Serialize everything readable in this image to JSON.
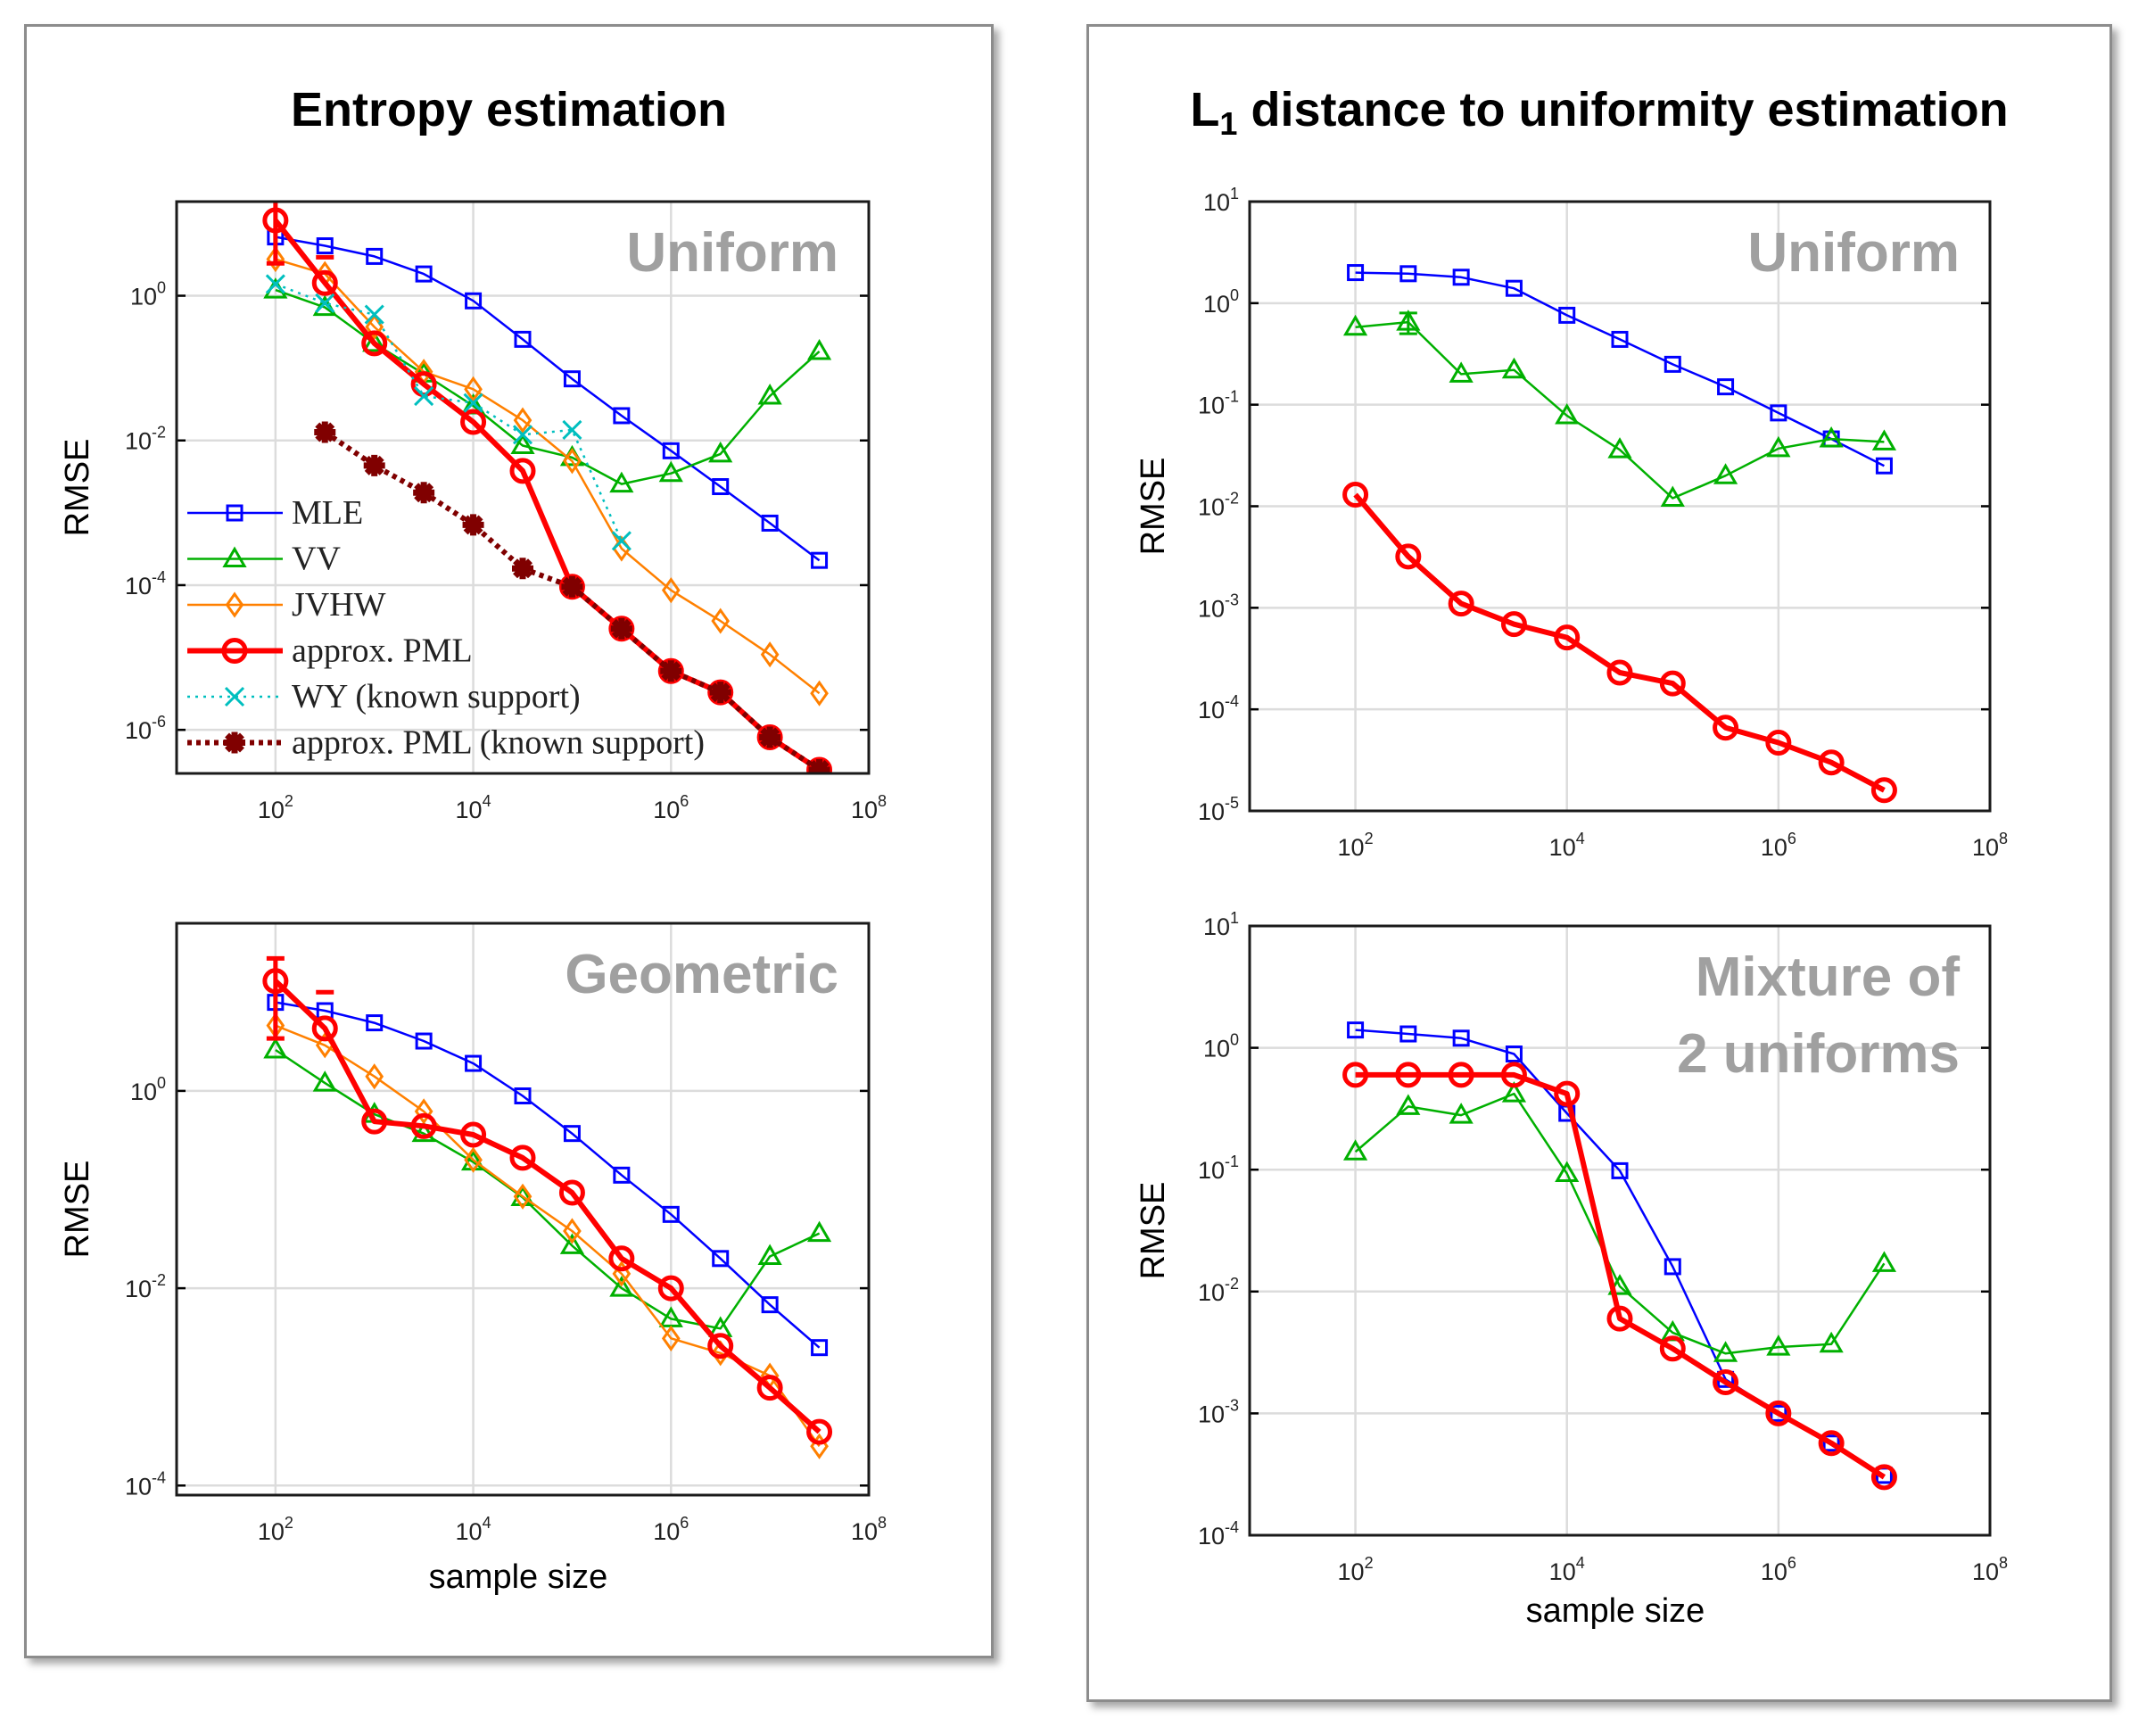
{
  "panels": [
    {
      "title": "Entropy estimation"
    },
    {
      "title_main": "L",
      "title_sub": "1",
      "title_rest": " distance to uniformity estimation"
    }
  ],
  "chart_data": [
    {
      "type": "line",
      "panel": "Entropy estimation",
      "annotation": [
        "Uniform"
      ],
      "xlabel": "",
      "ylabel": "RMSE",
      "xscale": "log",
      "yscale": "log",
      "xlim": [
        10,
        100000000
      ],
      "ylim": [
        2.5e-07,
        20
      ],
      "xticks": [
        100,
        10000,
        1000000,
        100000000
      ],
      "yticks": [
        1e-06,
        0.0001,
        0.01,
        1
      ],
      "grid": true,
      "legend": "bottom-left",
      "x": [
        100,
        316,
        1000,
        3162,
        10000,
        31623,
        100000,
        316228,
        1000000,
        3162278,
        10000000,
        31622777
      ],
      "series": [
        {
          "name": "MLE",
          "color": "#0000ff",
          "marker": "square",
          "linestyle": "solid",
          "bold": false,
          "values": [
            6.5,
            4.9,
            3.5,
            2.0,
            0.85,
            0.25,
            0.071,
            0.022,
            0.0072,
            0.0023,
            0.00072,
            0.00022
          ]
        },
        {
          "name": "VV",
          "color": "#00b000",
          "marker": "triangle",
          "linestyle": "solid",
          "bold": false,
          "values": [
            1.2,
            0.69,
            0.22,
            0.083,
            0.03,
            0.0085,
            0.0058,
            0.0025,
            0.0035,
            0.0065,
            0.041,
            0.17
          ]
        },
        {
          "name": "JVHW",
          "color": "#ff8000",
          "marker": "diamond",
          "linestyle": "solid",
          "bold": false,
          "values": [
            3.2,
            2.0,
            0.37,
            0.089,
            0.051,
            0.019,
            0.0052,
            0.00032,
            8.5e-05,
            3.2e-05,
            1.1e-05,
            3.2e-06
          ]
        },
        {
          "name": "approx. PML",
          "color": "#ff0000",
          "marker": "circle",
          "linestyle": "solid",
          "bold": true,
          "values": [
            11,
            1.5,
            0.22,
            0.06,
            0.018,
            0.0038,
            9.5e-05,
            2.5e-05,
            6.5e-06,
            3.3e-06,
            7.9e-07,
            2.8e-07
          ],
          "error_bars": [
            {
              "x": 100,
              "low": 2.8,
              "high": 25
            },
            {
              "x": 316,
              "low": 3.4,
              "high": 3.4
            }
          ]
        },
        {
          "name": "WY (known support)",
          "color": "#00bfbf",
          "marker": "x",
          "linestyle": "dotted",
          "bold": false,
          "values": [
            1.45,
            0.79,
            0.55,
            0.041,
            0.033,
            0.012,
            0.014,
            0.00041,
            null,
            null,
            null,
            null
          ]
        },
        {
          "name": "approx. PML (known support)",
          "color": "#800000",
          "marker": "asterisk",
          "linestyle": "dotted",
          "bold": true,
          "values": [
            null,
            0.013,
            0.0045,
            0.0019,
            0.00068,
            0.00017,
            9.5e-05,
            2.5e-05,
            6.5e-06,
            3.3e-06,
            7.9e-07,
            2.8e-07
          ]
        }
      ]
    },
    {
      "type": "line",
      "panel": "Entropy estimation",
      "annotation": [
        "Geometric"
      ],
      "xlabel": "sample size",
      "ylabel": "RMSE",
      "xscale": "log",
      "yscale": "log",
      "xlim": [
        10,
        100000000
      ],
      "ylim": [
        8e-05,
        50
      ],
      "xticks": [
        100,
        10000,
        1000000,
        100000000
      ],
      "yticks": [
        0.0001,
        0.01,
        1
      ],
      "grid": true,
      "x": [
        100,
        316,
        1000,
        3162,
        10000,
        31623,
        100000,
        316228,
        1000000,
        3162278,
        10000000,
        31622777
      ],
      "series": [
        {
          "name": "MLE",
          "color": "#0000ff",
          "marker": "square",
          "linestyle": "solid",
          "bold": false,
          "values": [
            7.9,
            6.5,
            4.9,
            3.2,
            1.9,
            0.89,
            0.37,
            0.14,
            0.056,
            0.02,
            0.0068,
            0.0025
          ]
        },
        {
          "name": "VV",
          "color": "#00b000",
          "marker": "triangle",
          "linestyle": "solid",
          "bold": false,
          "values": [
            2.6,
            1.2,
            0.58,
            0.37,
            0.19,
            0.083,
            0.027,
            0.01,
            0.0049,
            0.0039,
            0.021,
            0.036
          ]
        },
        {
          "name": "JVHW",
          "color": "#ff8000",
          "marker": "diamond",
          "linestyle": "solid",
          "bold": false,
          "values": [
            4.6,
            2.9,
            1.4,
            0.62,
            0.2,
            0.085,
            0.038,
            0.014,
            0.0031,
            0.0022,
            0.0013,
            0.00025
          ]
        },
        {
          "name": "approx. PML",
          "color": "#ff0000",
          "marker": "circle",
          "linestyle": "solid",
          "bold": true,
          "values": [
            13,
            4.3,
            0.49,
            0.44,
            0.36,
            0.21,
            0.093,
            0.02,
            0.01,
            0.0026,
            0.00098,
            0.00035
          ],
          "error_bars": [
            {
              "x": 100,
              "low": 3.4,
              "high": 22
            },
            {
              "x": 316,
              "low": 10,
              "high": 10
            }
          ]
        }
      ]
    },
    {
      "type": "line",
      "panel": "L1 distance to uniformity estimation",
      "annotation": [
        "Uniform"
      ],
      "xlabel": "",
      "ylabel": "RMSE",
      "xscale": "log",
      "yscale": "log",
      "xlim": [
        10,
        100000000
      ],
      "ylim": [
        1e-05,
        10
      ],
      "xticks": [
        100,
        10000,
        1000000,
        100000000
      ],
      "yticks": [
        1e-05,
        0.0001,
        0.001,
        0.01,
        0.1,
        1,
        10
      ],
      "grid": true,
      "x": [
        100,
        316,
        1000,
        3162,
        10000,
        31623,
        100000,
        316228,
        1000000,
        3162278,
        10000000
      ],
      "series": [
        {
          "name": "MLE",
          "color": "#0000ff",
          "marker": "square",
          "linestyle": "solid",
          "bold": false,
          "values": [
            2.0,
            1.95,
            1.8,
            1.4,
            0.76,
            0.44,
            0.25,
            0.15,
            0.083,
            0.046,
            0.025
          ]
        },
        {
          "name": "VV",
          "color": "#00b000",
          "marker": "triangle",
          "linestyle": "solid",
          "bold": false,
          "values": [
            0.58,
            0.65,
            0.2,
            0.22,
            0.078,
            0.036,
            0.012,
            0.02,
            0.037,
            0.046,
            0.043
          ],
          "error_bars": [
            {
              "x": 316,
              "low": 0.5,
              "high": 0.8
            }
          ]
        },
        {
          "name": "approx. PML",
          "color": "#ff0000",
          "marker": "circle",
          "linestyle": "solid",
          "bold": true,
          "values": [
            0.013,
            0.0032,
            0.0011,
            0.00069,
            0.00051,
            0.00023,
            0.00018,
            6.6e-05,
            4.7e-05,
            3e-05,
            1.6e-05
          ]
        }
      ]
    },
    {
      "type": "line",
      "panel": "L1 distance to uniformity estimation",
      "annotation": [
        "Mixture of",
        "2 uniforms"
      ],
      "xlabel": "sample size",
      "ylabel": "RMSE",
      "xscale": "log",
      "yscale": "log",
      "xlim": [
        10,
        100000000
      ],
      "ylim": [
        0.0001,
        10
      ],
      "xticks": [
        100,
        10000,
        1000000,
        100000000
      ],
      "yticks": [
        0.0001,
        0.001,
        0.01,
        0.1,
        1,
        10
      ],
      "grid": true,
      "x": [
        100,
        316,
        1000,
        3162,
        10000,
        31623,
        100000,
        316228,
        1000000,
        3162278,
        10000000
      ],
      "series": [
        {
          "name": "MLE",
          "color": "#0000ff",
          "marker": "square",
          "linestyle": "solid",
          "bold": false,
          "values": [
            1.4,
            1.3,
            1.2,
            0.89,
            0.29,
            0.098,
            0.016,
            0.0019,
            0.001,
            0.00057,
            0.00031
          ]
        },
        {
          "name": "VV",
          "color": "#00b000",
          "marker": "triangle",
          "linestyle": "solid",
          "bold": false,
          "values": [
            0.14,
            0.33,
            0.28,
            0.42,
            0.093,
            0.011,
            0.0046,
            0.0031,
            0.0035,
            0.0037,
            0.017
          ]
        },
        {
          "name": "approx. PML",
          "color": "#ff0000",
          "marker": "circle",
          "linestyle": "solid",
          "bold": true,
          "values": [
            0.6,
            0.6,
            0.6,
            0.6,
            0.42,
            0.006,
            0.0034,
            0.0018,
            0.001,
            0.00057,
            0.0003
          ]
        }
      ]
    }
  ]
}
